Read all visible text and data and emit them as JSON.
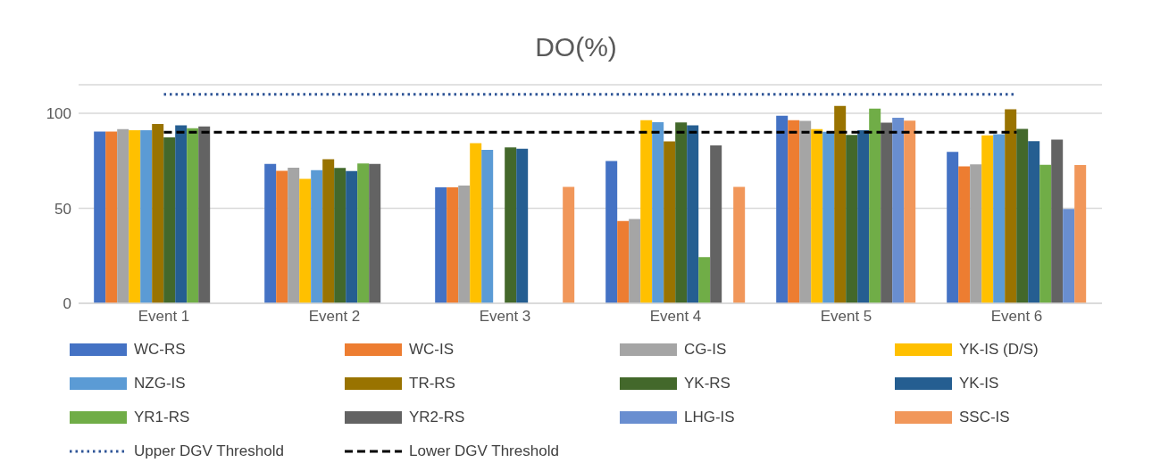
{
  "chart_data": {
    "type": "bar",
    "title": "DO(%)",
    "categories": [
      "Event 1",
      "Event 2",
      "Event 3",
      "Event 4",
      "Event 5",
      "Event 6"
    ],
    "series": [
      {
        "name": "WC-RS",
        "color": "#4472c4",
        "values": [
          90.3,
          73.3,
          61.0,
          74.9,
          98.7,
          79.7
        ]
      },
      {
        "name": "WC-IS",
        "color": "#ed7d31",
        "values": [
          90.3,
          69.7,
          61.0,
          43.3,
          96.3,
          72.1
        ]
      },
      {
        "name": "CG-IS",
        "color": "#a5a5a5",
        "values": [
          91.6,
          71.3,
          62.0,
          44.3,
          96.0,
          73.1
        ]
      },
      {
        "name": "YK-IS (D/S)",
        "color": "#ffc000",
        "values": [
          91.1,
          65.5,
          84.2,
          96.3,
          91.6,
          88.4
        ]
      },
      {
        "name": "NZG-IS",
        "color": "#5b9bd5",
        "values": [
          91.1,
          70.0,
          80.7,
          95.3,
          90.2,
          88.9
        ]
      },
      {
        "name": "TR-RS",
        "color": "#997300",
        "values": [
          94.4,
          75.8,
          null,
          85.2,
          103.9,
          102.1
        ]
      },
      {
        "name": "YK-RS",
        "color": "#43682b",
        "values": [
          87.3,
          71.2,
          82.0,
          95.2,
          88.6,
          91.8
        ]
      },
      {
        "name": "YK-IS",
        "color": "#255e91",
        "values": [
          93.7,
          69.6,
          81.3,
          93.6,
          91.1,
          85.3
        ]
      },
      {
        "name": "YR1-RS",
        "color": "#70ad47",
        "values": [
          92.1,
          73.6,
          null,
          24.3,
          102.4,
          72.9
        ]
      },
      {
        "name": "YR2-RS",
        "color": "#636363",
        "values": [
          93.1,
          73.4,
          null,
          83.1,
          95.0,
          86.1
        ]
      },
      {
        "name": "LHG-IS",
        "color": "#698ed0",
        "values": [
          null,
          null,
          null,
          null,
          97.6,
          49.6
        ]
      },
      {
        "name": "SSC-IS",
        "color": "#f1975a",
        "values": [
          null,
          null,
          61.2,
          61.2,
          96.1,
          72.8
        ]
      },
      {
        "name": "Upper DGV Threshold",
        "type": "line",
        "line_style": "dotted",
        "color": "#2f5597",
        "values": [
          110,
          110,
          110,
          110,
          110,
          110
        ]
      },
      {
        "name": "Lower DGV Threshold",
        "type": "line",
        "line_style": "dashed",
        "color": "#000000",
        "values": [
          90,
          90,
          90,
          90,
          90,
          90
        ]
      }
    ],
    "ylim": [
      0,
      115
    ],
    "yticks": [
      0,
      50,
      100
    ],
    "grid": "y",
    "legend": "bottom"
  }
}
